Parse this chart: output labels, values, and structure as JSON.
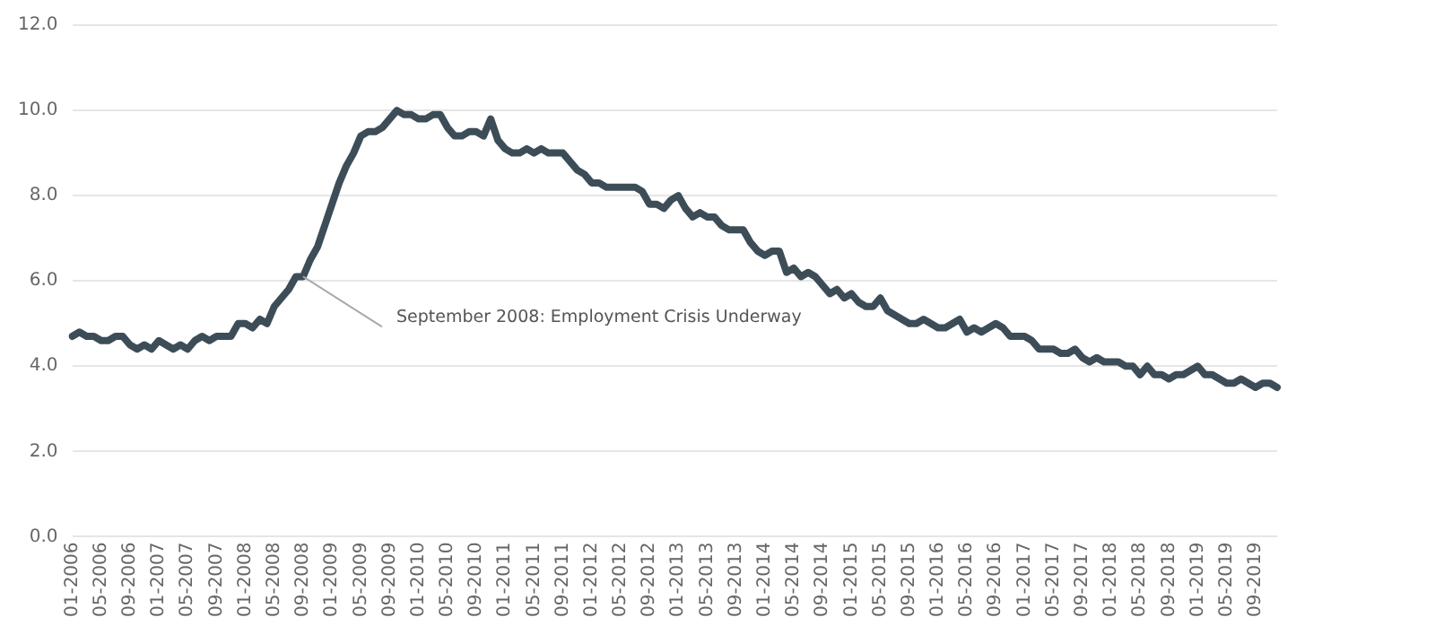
{
  "chart_data": {
    "type": "line",
    "categories": [
      "01-2006",
      null,
      null,
      null,
      "05-2006",
      null,
      null,
      null,
      "09-2006",
      null,
      null,
      null,
      "01-2007",
      null,
      null,
      null,
      "05-2007",
      null,
      null,
      null,
      "09-2007",
      null,
      null,
      null,
      "01-2008",
      null,
      null,
      null,
      "05-2008",
      null,
      null,
      null,
      "09-2008",
      null,
      null,
      null,
      "01-2009",
      null,
      null,
      null,
      "05-2009",
      null,
      null,
      null,
      "09-2009",
      null,
      null,
      null,
      "01-2010",
      null,
      null,
      null,
      "05-2010",
      null,
      null,
      null,
      "09-2010",
      null,
      null,
      null,
      "01-2011",
      null,
      null,
      null,
      "05-2011",
      null,
      null,
      null,
      "09-2011",
      null,
      null,
      null,
      "01-2012",
      null,
      null,
      null,
      "05-2012",
      null,
      null,
      null,
      "09-2012",
      null,
      null,
      null,
      "01-2013",
      null,
      null,
      null,
      "05-2013",
      null,
      null,
      null,
      "09-2013",
      null,
      null,
      null,
      "01-2014",
      null,
      null,
      null,
      "05-2014",
      null,
      null,
      null,
      "09-2014",
      null,
      null,
      null,
      "01-2015",
      null,
      null,
      null,
      "05-2015",
      null,
      null,
      null,
      "09-2015",
      null,
      null,
      null,
      "01-2016",
      null,
      null,
      null,
      "05-2016",
      null,
      null,
      null,
      "09-2016",
      null,
      null,
      null,
      "01-2017",
      null,
      null,
      null,
      "05-2017",
      null,
      null,
      null,
      "09-2017",
      null,
      null,
      null,
      "01-2018",
      null,
      null,
      null,
      "05-2018",
      null,
      null,
      null,
      "09-2018",
      null,
      null,
      null,
      "01-2019",
      null,
      null,
      null,
      "05-2019",
      null,
      null,
      null,
      "09-2019",
      null,
      null,
      null
    ],
    "series": [
      {
        "color": "#3d4d58",
        "values": [
          4.7,
          4.8,
          4.7,
          4.7,
          4.6,
          4.6,
          4.7,
          4.7,
          4.5,
          4.4,
          4.5,
          4.4,
          4.6,
          4.5,
          4.4,
          4.5,
          4.4,
          4.6,
          4.7,
          4.6,
          4.7,
          4.7,
          4.7,
          5.0,
          5.0,
          4.9,
          5.1,
          5.0,
          5.4,
          5.6,
          5.8,
          6.1,
          6.1,
          6.5,
          6.8,
          7.3,
          7.8,
          8.3,
          8.7,
          9.0,
          9.4,
          9.5,
          9.5,
          9.6,
          9.8,
          10.0,
          9.9,
          9.9,
          9.8,
          9.8,
          9.9,
          9.9,
          9.6,
          9.4,
          9.4,
          9.5,
          9.5,
          9.4,
          9.8,
          9.3,
          9.1,
          9.0,
          9.0,
          9.1,
          9.0,
          9.1,
          9.0,
          9.0,
          9.0,
          8.8,
          8.6,
          8.5,
          8.3,
          8.3,
          8.2,
          8.2,
          8.2,
          8.2,
          8.2,
          8.1,
          7.8,
          7.8,
          7.7,
          7.9,
          8.0,
          7.7,
          7.5,
          7.6,
          7.5,
          7.5,
          7.3,
          7.2,
          7.2,
          7.2,
          6.9,
          6.7,
          6.6,
          6.7,
          6.7,
          6.2,
          6.3,
          6.1,
          6.2,
          6.1,
          5.9,
          5.7,
          5.8,
          5.6,
          5.7,
          5.5,
          5.4,
          5.4,
          5.6,
          5.3,
          5.2,
          5.1,
          5.0,
          5.0,
          5.1,
          5.0,
          4.9,
          4.9,
          5.0,
          5.1,
          4.8,
          4.9,
          4.8,
          4.9,
          5.0,
          4.9,
          4.7,
          4.7,
          4.7,
          4.6,
          4.4,
          4.4,
          4.4,
          4.3,
          4.3,
          4.4,
          4.2,
          4.1,
          4.2,
          4.1,
          4.1,
          4.1,
          4.0,
          4.0,
          3.8,
          4.0,
          3.8,
          3.8,
          3.7,
          3.8,
          3.8,
          3.9,
          4.0,
          3.8,
          3.8,
          3.7,
          3.6,
          3.6,
          3.7,
          3.6,
          3.5,
          3.6,
          3.6,
          3.5
        ]
      }
    ],
    "ylim": [
      0,
      12
    ],
    "yticks": [
      {
        "value": 0,
        "label": "0.0"
      },
      {
        "value": 2,
        "label": "2.0"
      },
      {
        "value": 4,
        "label": "4.0"
      },
      {
        "value": 6,
        "label": "6.0"
      },
      {
        "value": 8,
        "label": "8.0"
      },
      {
        "value": 10,
        "label": "10.0"
      },
      {
        "value": 12,
        "label": "12.0"
      }
    ],
    "grid": "y",
    "legend": false,
    "marker": "none",
    "line_style": "solid",
    "annotations": [
      {
        "text": "September 2008: Employment Crisis Underway",
        "x": "09-2008",
        "y": 6.1
      }
    ]
  }
}
